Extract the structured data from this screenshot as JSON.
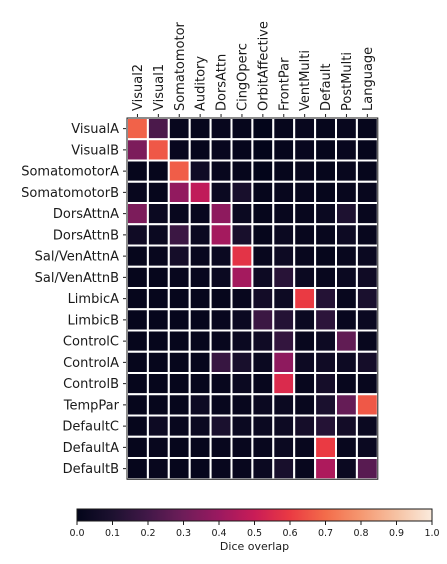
{
  "chart_data": {
    "type": "heatmap",
    "title": "",
    "columns": [
      "Visual2",
      "Visual1",
      "Somatomotor",
      "Auditory",
      "DorsAttn",
      "CingOperc",
      "OrbitAffective",
      "FrontPar",
      "VentMulti",
      "Default",
      "PostMulti",
      "Language"
    ],
    "rows": [
      "VisualA",
      "VisualB",
      "SomatomotorA",
      "SomatomotorB",
      "DorsAttnA",
      "DorsAttnB",
      "Sal/VenAttnA",
      "Sal/VenAttnB",
      "LimbicA",
      "LimbicB",
      "ControlC",
      "ControlA",
      "ControlB",
      "TempPar",
      "DefaultC",
      "DefaultA",
      "DefaultB"
    ],
    "values": [
      [
        0.68,
        0.22,
        0.02,
        0.01,
        0.02,
        0.01,
        0.0,
        0.01,
        0.02,
        0.01,
        0.02,
        0.01
      ],
      [
        0.33,
        0.66,
        0.02,
        0.01,
        0.02,
        0.01,
        0.0,
        0.01,
        0.02,
        0.01,
        0.02,
        0.01
      ],
      [
        0.01,
        0.01,
        0.67,
        0.05,
        0.02,
        0.01,
        0.0,
        0.01,
        0.02,
        0.01,
        0.02,
        0.01
      ],
      [
        0.02,
        0.01,
        0.38,
        0.48,
        0.03,
        0.08,
        0.01,
        0.02,
        0.02,
        0.01,
        0.02,
        0.02
      ],
      [
        0.33,
        0.03,
        0.02,
        0.02,
        0.37,
        0.03,
        0.01,
        0.02,
        0.02,
        0.03,
        0.1,
        0.02
      ],
      [
        0.05,
        0.03,
        0.18,
        0.03,
        0.42,
        0.08,
        0.01,
        0.03,
        0.02,
        0.02,
        0.04,
        0.02
      ],
      [
        0.01,
        0.02,
        0.07,
        0.02,
        0.03,
        0.58,
        0.02,
        0.04,
        0.02,
        0.01,
        0.02,
        0.03
      ],
      [
        0.01,
        0.01,
        0.02,
        0.02,
        0.03,
        0.42,
        0.04,
        0.13,
        0.03,
        0.02,
        0.03,
        0.05
      ],
      [
        0.01,
        0.01,
        0.01,
        0.01,
        0.01,
        0.02,
        0.06,
        0.04,
        0.6,
        0.12,
        0.02,
        0.09
      ],
      [
        0.01,
        0.01,
        0.01,
        0.01,
        0.02,
        0.03,
        0.18,
        0.12,
        0.03,
        0.14,
        0.02,
        0.03
      ],
      [
        0.01,
        0.01,
        0.01,
        0.01,
        0.02,
        0.03,
        0.05,
        0.16,
        0.02,
        0.04,
        0.27,
        0.02
      ],
      [
        0.01,
        0.01,
        0.01,
        0.01,
        0.17,
        0.08,
        0.03,
        0.37,
        0.04,
        0.05,
        0.04,
        0.07
      ],
      [
        0.01,
        0.01,
        0.01,
        0.01,
        0.02,
        0.03,
        0.02,
        0.55,
        0.02,
        0.07,
        0.02,
        0.02
      ],
      [
        0.01,
        0.01,
        0.01,
        0.04,
        0.02,
        0.02,
        0.03,
        0.03,
        0.02,
        0.09,
        0.28,
        0.66
      ],
      [
        0.01,
        0.04,
        0.02,
        0.03,
        0.09,
        0.03,
        0.03,
        0.04,
        0.07,
        0.12,
        0.06,
        0.03
      ],
      [
        0.01,
        0.02,
        0.01,
        0.01,
        0.02,
        0.02,
        0.02,
        0.03,
        0.02,
        0.6,
        0.02,
        0.03
      ],
      [
        0.01,
        0.02,
        0.01,
        0.01,
        0.02,
        0.02,
        0.03,
        0.08,
        0.02,
        0.44,
        0.03,
        0.25
      ]
    ],
    "colorbar": {
      "label": "Dice overlap",
      "range": [
        0.0,
        1.0
      ],
      "ticks": [
        "0.0",
        "0.1",
        "0.2",
        "0.3",
        "0.4",
        "0.5",
        "0.6",
        "0.7",
        "0.8",
        "0.9",
        "1.0"
      ],
      "orientation": "horizontal",
      "placement": "bottom"
    },
    "colormap": "rocket",
    "cell_border_color": "#ffffff"
  }
}
